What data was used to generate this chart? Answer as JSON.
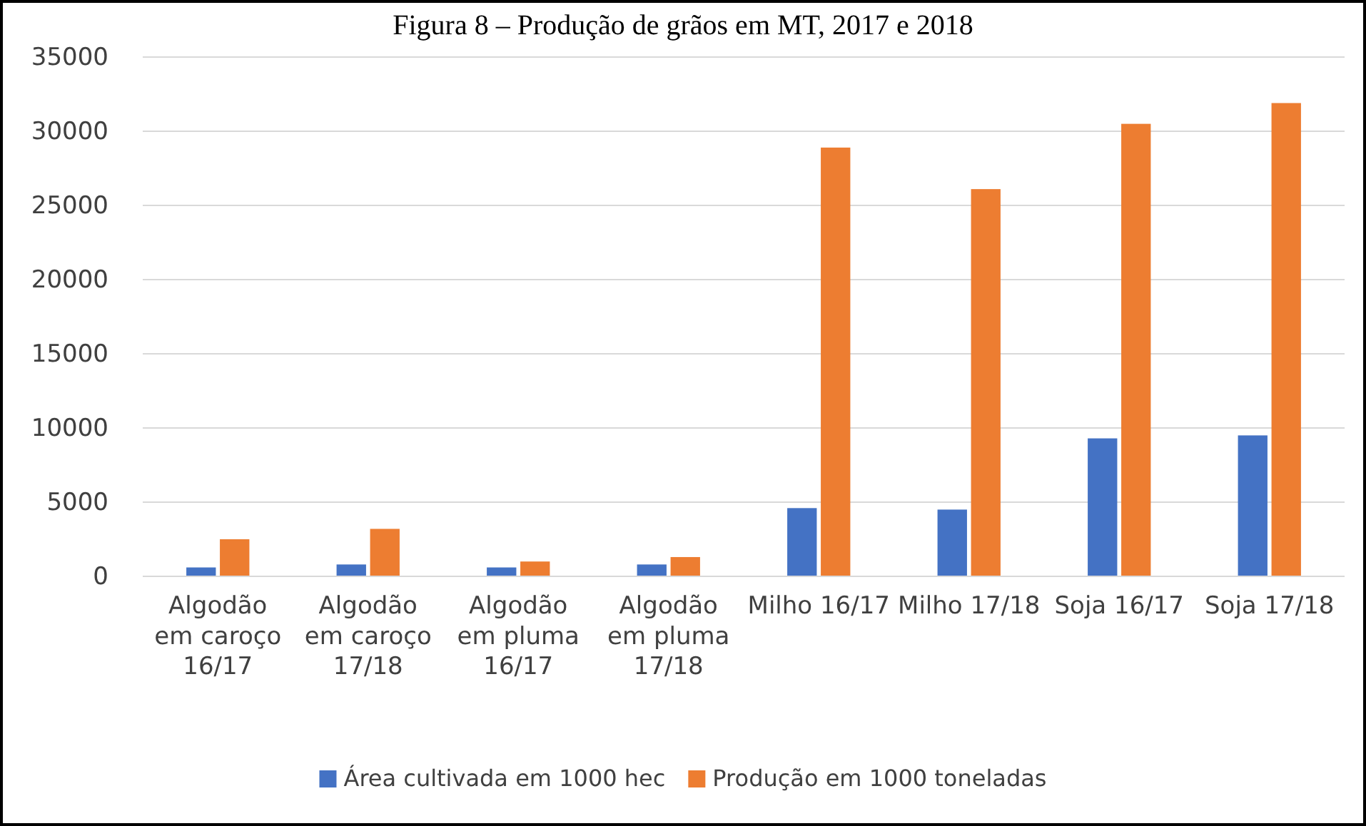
{
  "chart_data": {
    "type": "bar",
    "title": "Figura 8 – Produção de grãos em MT, 2017 e 2018",
    "categories": [
      "Algodão em caroço 16/17",
      "Algodão em caroço 17/18",
      "Algodão em pluma 16/17",
      "Algodão em pluma 17/18",
      "Milho 16/17",
      "Milho 17/18",
      "Soja 16/17",
      "Soja 17/18"
    ],
    "series": [
      {
        "name": "Área cultivada em 1000 hec",
        "color": "#4472c4",
        "values": [
          600,
          800,
          600,
          800,
          4600,
          4500,
          9300,
          9500
        ]
      },
      {
        "name": "Produção em 1000 toneladas",
        "color": "#ed7d31",
        "values": [
          2500,
          3200,
          1000,
          1300,
          28900,
          26100,
          30500,
          31900
        ]
      }
    ],
    "ylim": [
      0,
      35000
    ],
    "yticks": [
      0,
      5000,
      10000,
      15000,
      20000,
      25000,
      30000,
      35000
    ],
    "grid": "y",
    "legend": "bottom"
  }
}
